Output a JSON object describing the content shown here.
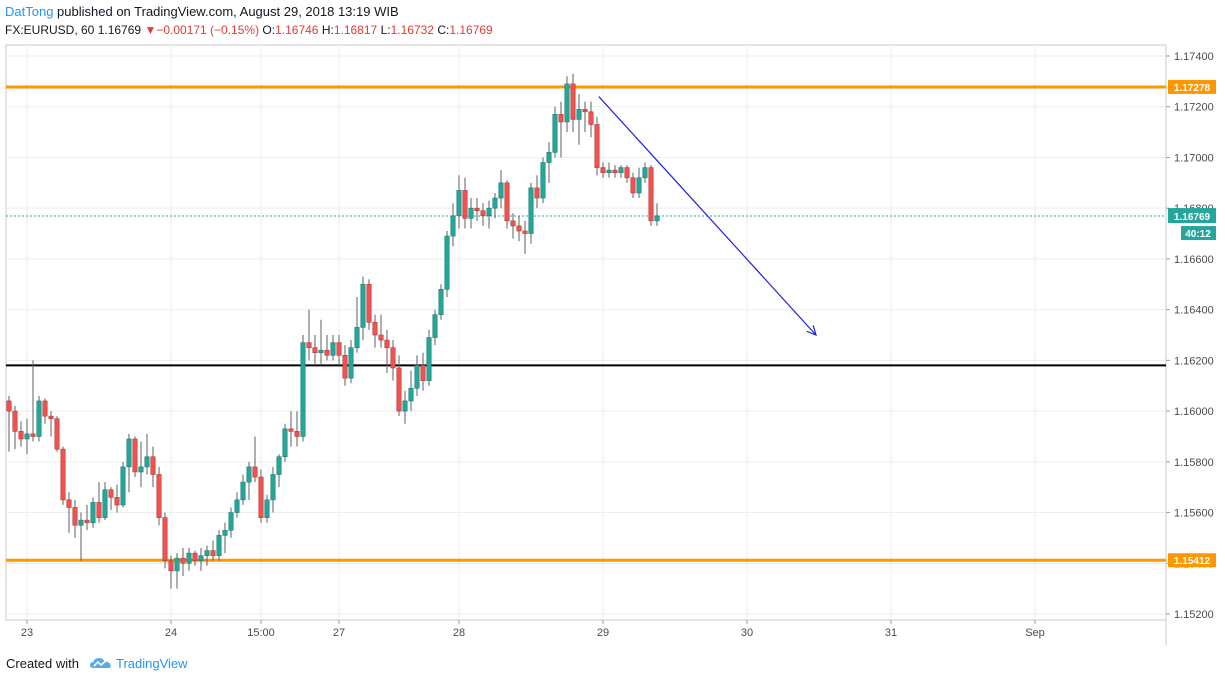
{
  "header": {
    "author": "DatTong",
    "published_text": "published on TradingView.com, August 29, 2018 13:19 WIB",
    "symbol": "FX:EURUSD, 60",
    "last": "1.16769",
    "change_arrow": "▼",
    "change": "−0.00171 (−0.15%)",
    "open_label": "O:",
    "open": "1.16746",
    "high_label": "H:",
    "high": "1.16817",
    "low_label": "L:",
    "low": "1.16732",
    "close_label": "C:",
    "close": "1.16769"
  },
  "footer": {
    "created_with": "Created with",
    "brand": "TradingView",
    "logo_icon": "tradingview-cloud-icon"
  },
  "colors": {
    "up": "#26a69a",
    "down": "#ef5350",
    "level": "#ff9800",
    "support": "#000000",
    "trend": "#1e22e0",
    "last_price": "#26a69a"
  },
  "chart_data": {
    "type": "candlestick",
    "ylim": [
      1.1515,
      1.1748
    ],
    "y_ticks": [
      "1.17400",
      "1.17200",
      "1.17000",
      "1.16800",
      "1.16600",
      "1.16400",
      "1.16200",
      "1.16000",
      "1.15800",
      "1.15600",
      "1.15400",
      "1.15200"
    ],
    "y_tick_values": [
      1.174,
      1.172,
      1.17,
      1.168,
      1.166,
      1.164,
      1.162,
      1.16,
      1.158,
      1.156,
      1.154,
      1.152
    ],
    "x_labels": [
      {
        "label": "23",
        "bar": 3
      },
      {
        "label": "24",
        "bar": 27
      },
      {
        "label": "15:00",
        "bar": 42
      },
      {
        "label": "27",
        "bar": 55
      },
      {
        "label": "28",
        "bar": 75
      },
      {
        "label": "29",
        "bar": 99
      },
      {
        "label": "30",
        "bar": 123
      },
      {
        "label": "31",
        "bar": 147
      },
      {
        "label": "Sep",
        "bar": 171
      }
    ],
    "total_bars": 193,
    "horizontal_levels": [
      {
        "label": "1.17278",
        "value": 1.17278,
        "color": "#ff9800"
      },
      {
        "label": "1.15412",
        "value": 1.15412,
        "color": "#ff9800"
      },
      {
        "value": 1.1618,
        "color": "#000000"
      }
    ],
    "last_price": {
      "label": "1.16769",
      "value": 1.16769,
      "countdown": "40:12"
    },
    "trend_arrow": {
      "from": {
        "bar": 98.3,
        "price": 1.1724
      },
      "to": {
        "bar": 134.5,
        "price": 1.163
      }
    },
    "candles": [
      {
        "o": 1.1604,
        "h": 1.1606,
        "l": 1.1584,
        "c": 1.16
      },
      {
        "o": 1.16,
        "h": 1.1602,
        "l": 1.1585,
        "c": 1.1592
      },
      {
        "o": 1.1592,
        "h": 1.1596,
        "l": 1.1586,
        "c": 1.1589
      },
      {
        "o": 1.1589,
        "h": 1.1597,
        "l": 1.1583,
        "c": 1.1591
      },
      {
        "o": 1.1591,
        "h": 1.162,
        "l": 1.1588,
        "c": 1.159
      },
      {
        "o": 1.159,
        "h": 1.1606,
        "l": 1.1588,
        "c": 1.1604
      },
      {
        "o": 1.1604,
        "h": 1.1605,
        "l": 1.1595,
        "c": 1.1598
      },
      {
        "o": 1.1598,
        "h": 1.16,
        "l": 1.159,
        "c": 1.1597
      },
      {
        "o": 1.1597,
        "h": 1.1598,
        "l": 1.1584,
        "c": 1.1585
      },
      {
        "o": 1.1585,
        "h": 1.1586,
        "l": 1.1563,
        "c": 1.1565
      },
      {
        "o": 1.1565,
        "h": 1.1568,
        "l": 1.1552,
        "c": 1.1562
      },
      {
        "o": 1.1562,
        "h": 1.1565,
        "l": 1.155,
        "c": 1.1555
      },
      {
        "o": 1.1555,
        "h": 1.156,
        "l": 1.1541,
        "c": 1.1557
      },
      {
        "o": 1.1557,
        "h": 1.1563,
        "l": 1.1553,
        "c": 1.1556
      },
      {
        "o": 1.1556,
        "h": 1.1566,
        "l": 1.1554,
        "c": 1.1564
      },
      {
        "o": 1.1564,
        "h": 1.1572,
        "l": 1.1556,
        "c": 1.1558
      },
      {
        "o": 1.1558,
        "h": 1.1572,
        "l": 1.1557,
        "c": 1.1569
      },
      {
        "o": 1.1569,
        "h": 1.157,
        "l": 1.1561,
        "c": 1.1566
      },
      {
        "o": 1.1566,
        "h": 1.1571,
        "l": 1.156,
        "c": 1.1563
      },
      {
        "o": 1.1563,
        "h": 1.158,
        "l": 1.1562,
        "c": 1.1578
      },
      {
        "o": 1.1578,
        "h": 1.1591,
        "l": 1.1568,
        "c": 1.1589
      },
      {
        "o": 1.1589,
        "h": 1.159,
        "l": 1.1574,
        "c": 1.1576
      },
      {
        "o": 1.1576,
        "h": 1.1588,
        "l": 1.157,
        "c": 1.1578
      },
      {
        "o": 1.1578,
        "h": 1.1591,
        "l": 1.1575,
        "c": 1.1582
      },
      {
        "o": 1.1582,
        "h": 1.1586,
        "l": 1.157,
        "c": 1.1575
      },
      {
        "o": 1.1575,
        "h": 1.1578,
        "l": 1.1555,
        "c": 1.1558
      },
      {
        "o": 1.1558,
        "h": 1.156,
        "l": 1.1538,
        "c": 1.1541
      },
      {
        "o": 1.1541,
        "h": 1.1543,
        "l": 1.153,
        "c": 1.1537
      },
      {
        "o": 1.1537,
        "h": 1.1544,
        "l": 1.153,
        "c": 1.1542
      },
      {
        "o": 1.1542,
        "h": 1.1546,
        "l": 1.1535,
        "c": 1.154
      },
      {
        "o": 1.154,
        "h": 1.1546,
        "l": 1.1537,
        "c": 1.1544
      },
      {
        "o": 1.1544,
        "h": 1.1545,
        "l": 1.1539,
        "c": 1.1541
      },
      {
        "o": 1.1541,
        "h": 1.1546,
        "l": 1.1537,
        "c": 1.1543
      },
      {
        "o": 1.1543,
        "h": 1.1547,
        "l": 1.1539,
        "c": 1.1545
      },
      {
        "o": 1.1545,
        "h": 1.1549,
        "l": 1.1541,
        "c": 1.1543
      },
      {
        "o": 1.1543,
        "h": 1.1553,
        "l": 1.1541,
        "c": 1.1551
      },
      {
        "o": 1.1551,
        "h": 1.1556,
        "l": 1.1544,
        "c": 1.1553
      },
      {
        "o": 1.1553,
        "h": 1.1562,
        "l": 1.155,
        "c": 1.156
      },
      {
        "o": 1.156,
        "h": 1.1568,
        "l": 1.1558,
        "c": 1.1565
      },
      {
        "o": 1.1565,
        "h": 1.1575,
        "l": 1.1563,
        "c": 1.1572
      },
      {
        "o": 1.1572,
        "h": 1.158,
        "l": 1.1565,
        "c": 1.1578
      },
      {
        "o": 1.1578,
        "h": 1.159,
        "l": 1.1572,
        "c": 1.1574
      },
      {
        "o": 1.1574,
        "h": 1.1577,
        "l": 1.1556,
        "c": 1.1558
      },
      {
        "o": 1.1558,
        "h": 1.1567,
        "l": 1.1556,
        "c": 1.1565
      },
      {
        "o": 1.1565,
        "h": 1.1578,
        "l": 1.156,
        "c": 1.1575
      },
      {
        "o": 1.1575,
        "h": 1.1583,
        "l": 1.157,
        "c": 1.1582
      },
      {
        "o": 1.1582,
        "h": 1.1595,
        "l": 1.158,
        "c": 1.1593
      },
      {
        "o": 1.1593,
        "h": 1.16,
        "l": 1.1586,
        "c": 1.1592
      },
      {
        "o": 1.1592,
        "h": 1.16,
        "l": 1.1586,
        "c": 1.159
      },
      {
        "o": 1.159,
        "h": 1.163,
        "l": 1.1588,
        "c": 1.1627
      },
      {
        "o": 1.1627,
        "h": 1.164,
        "l": 1.162,
        "c": 1.1625
      },
      {
        "o": 1.1625,
        "h": 1.163,
        "l": 1.1618,
        "c": 1.1623
      },
      {
        "o": 1.1623,
        "h": 1.1636,
        "l": 1.1618,
        "c": 1.1624
      },
      {
        "o": 1.1624,
        "h": 1.163,
        "l": 1.162,
        "c": 1.1622
      },
      {
        "o": 1.1622,
        "h": 1.163,
        "l": 1.162,
        "c": 1.1627
      },
      {
        "o": 1.1627,
        "h": 1.163,
        "l": 1.1618,
        "c": 1.1622
      },
      {
        "o": 1.1622,
        "h": 1.1626,
        "l": 1.161,
        "c": 1.1613
      },
      {
        "o": 1.1613,
        "h": 1.1628,
        "l": 1.1611,
        "c": 1.1625
      },
      {
        "o": 1.1625,
        "h": 1.1645,
        "l": 1.1623,
        "c": 1.1633
      },
      {
        "o": 1.1633,
        "h": 1.1653,
        "l": 1.1628,
        "c": 1.165
      },
      {
        "o": 1.165,
        "h": 1.1652,
        "l": 1.1632,
        "c": 1.1635
      },
      {
        "o": 1.1635,
        "h": 1.1638,
        "l": 1.1625,
        "c": 1.163
      },
      {
        "o": 1.163,
        "h": 1.1638,
        "l": 1.1625,
        "c": 1.1628
      },
      {
        "o": 1.1628,
        "h": 1.1632,
        "l": 1.1615,
        "c": 1.1625
      },
      {
        "o": 1.1625,
        "h": 1.1628,
        "l": 1.1612,
        "c": 1.1617
      },
      {
        "o": 1.1617,
        "h": 1.1622,
        "l": 1.1598,
        "c": 1.16
      },
      {
        "o": 1.16,
        "h": 1.1608,
        "l": 1.1595,
        "c": 1.1604
      },
      {
        "o": 1.1604,
        "h": 1.1616,
        "l": 1.16,
        "c": 1.1609
      },
      {
        "o": 1.1609,
        "h": 1.1622,
        "l": 1.1606,
        "c": 1.1618
      },
      {
        "o": 1.1618,
        "h": 1.1623,
        "l": 1.1608,
        "c": 1.1612
      },
      {
        "o": 1.1612,
        "h": 1.1632,
        "l": 1.161,
        "c": 1.1629
      },
      {
        "o": 1.1629,
        "h": 1.164,
        "l": 1.1626,
        "c": 1.1638
      },
      {
        "o": 1.1638,
        "h": 1.165,
        "l": 1.1636,
        "c": 1.1648
      },
      {
        "o": 1.1648,
        "h": 1.1671,
        "l": 1.1645,
        "c": 1.1669
      },
      {
        "o": 1.1669,
        "h": 1.1682,
        "l": 1.1665,
        "c": 1.1677
      },
      {
        "o": 1.1677,
        "h": 1.1693,
        "l": 1.1672,
        "c": 1.1687
      },
      {
        "o": 1.1687,
        "h": 1.1692,
        "l": 1.1672,
        "c": 1.1676
      },
      {
        "o": 1.1676,
        "h": 1.1684,
        "l": 1.1672,
        "c": 1.168
      },
      {
        "o": 1.168,
        "h": 1.1684,
        "l": 1.1675,
        "c": 1.1679
      },
      {
        "o": 1.1679,
        "h": 1.1682,
        "l": 1.1673,
        "c": 1.1677
      },
      {
        "o": 1.1677,
        "h": 1.1683,
        "l": 1.1672,
        "c": 1.168
      },
      {
        "o": 1.168,
        "h": 1.1686,
        "l": 1.1676,
        "c": 1.1684
      },
      {
        "o": 1.1684,
        "h": 1.1695,
        "l": 1.168,
        "c": 1.169
      },
      {
        "o": 1.169,
        "h": 1.1691,
        "l": 1.1672,
        "c": 1.1675
      },
      {
        "o": 1.1675,
        "h": 1.1678,
        "l": 1.1668,
        "c": 1.1673
      },
      {
        "o": 1.1673,
        "h": 1.1677,
        "l": 1.1667,
        "c": 1.1671
      },
      {
        "o": 1.1671,
        "h": 1.1675,
        "l": 1.1662,
        "c": 1.167
      },
      {
        "o": 1.167,
        "h": 1.169,
        "l": 1.1666,
        "c": 1.1688
      },
      {
        "o": 1.1688,
        "h": 1.1693,
        "l": 1.168,
        "c": 1.1684
      },
      {
        "o": 1.1684,
        "h": 1.17,
        "l": 1.1682,
        "c": 1.1698
      },
      {
        "o": 1.1698,
        "h": 1.1706,
        "l": 1.169,
        "c": 1.1702
      },
      {
        "o": 1.1702,
        "h": 1.172,
        "l": 1.17,
        "c": 1.1717
      },
      {
        "o": 1.1717,
        "h": 1.1722,
        "l": 1.17,
        "c": 1.1714
      },
      {
        "o": 1.1714,
        "h": 1.1732,
        "l": 1.171,
        "c": 1.1729
      },
      {
        "o": 1.1729,
        "h": 1.1733,
        "l": 1.171,
        "c": 1.1715
      },
      {
        "o": 1.1715,
        "h": 1.1725,
        "l": 1.1705,
        "c": 1.1719
      },
      {
        "o": 1.1719,
        "h": 1.1722,
        "l": 1.171,
        "c": 1.1718
      },
      {
        "o": 1.1718,
        "h": 1.1722,
        "l": 1.1708,
        "c": 1.1713
      },
      {
        "o": 1.1713,
        "h": 1.1716,
        "l": 1.1693,
        "c": 1.1696
      },
      {
        "o": 1.1696,
        "h": 1.1698,
        "l": 1.1692,
        "c": 1.1694
      },
      {
        "o": 1.1694,
        "h": 1.1698,
        "l": 1.1692,
        "c": 1.1695
      },
      {
        "o": 1.1695,
        "h": 1.1697,
        "l": 1.1692,
        "c": 1.1694
      },
      {
        "o": 1.1694,
        "h": 1.1697,
        "l": 1.1692,
        "c": 1.1696
      },
      {
        "o": 1.1696,
        "h": 1.1697,
        "l": 1.169,
        "c": 1.1692
      },
      {
        "o": 1.1692,
        "h": 1.1694,
        "l": 1.1684,
        "c": 1.1686
      },
      {
        "o": 1.1686,
        "h": 1.1696,
        "l": 1.1684,
        "c": 1.1692
      },
      {
        "o": 1.1692,
        "h": 1.1698,
        "l": 1.169,
        "c": 1.1696
      },
      {
        "o": 1.1696,
        "h": 1.1697,
        "l": 1.1673,
        "c": 1.1675
      },
      {
        "o": 1.1675,
        "h": 1.1682,
        "l": 1.1673,
        "c": 1.1677
      }
    ]
  }
}
